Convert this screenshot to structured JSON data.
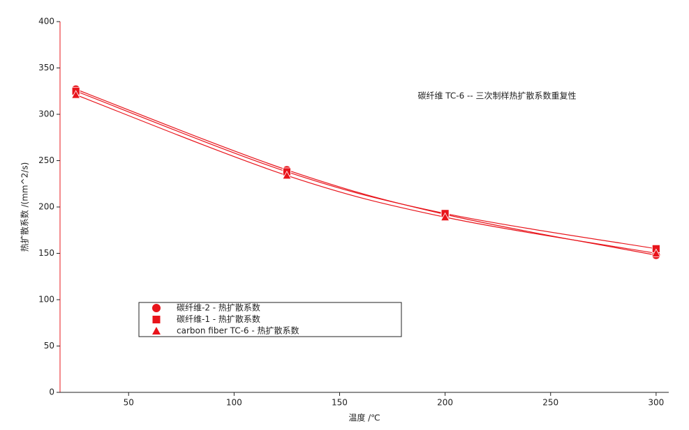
{
  "chart_data": {
    "type": "line",
    "annotation": "碳纤维 TC-6 -- 三次制样热扩散系数重复性",
    "x_label": "温度 /℃",
    "y_label": "热扩散系数 /(mm^2/s)",
    "x": [
      25,
      125,
      200,
      300
    ],
    "series": [
      {
        "name": "碳纤维-2 - 热扩散系数",
        "color": "#e8141b",
        "marker": "circle",
        "values": [
          327,
          240,
          192,
          148
        ]
      },
      {
        "name": "碳纤维-1 - 热扩散系数",
        "color": "#e8141b",
        "marker": "square",
        "values": [
          325,
          238,
          193,
          155
        ]
      },
      {
        "name": "carbon fiber TC-6 - 热扩散系数",
        "color": "#e8141b",
        "marker": "triangle",
        "values": [
          321,
          234,
          189,
          150
        ]
      }
    ],
    "xlim": [
      17.5,
      306
    ],
    "xticks": [
      50,
      100,
      150,
      200,
      250,
      300
    ],
    "ylim": [
      0,
      400
    ],
    "yticks": [
      0,
      50,
      100,
      150,
      200,
      250,
      300,
      350,
      400
    ]
  }
}
